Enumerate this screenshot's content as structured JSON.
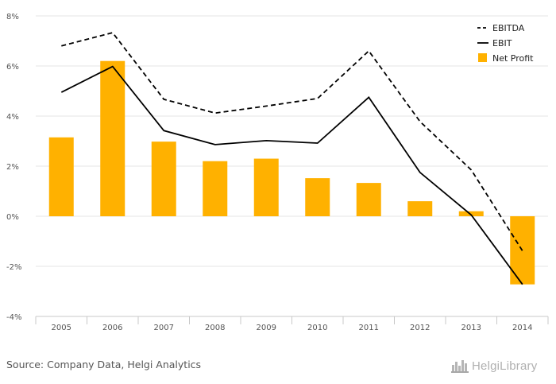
{
  "chart_data": {
    "type": "bar",
    "categories": [
      "2005",
      "2006",
      "2007",
      "2008",
      "2009",
      "2010",
      "2011",
      "2012",
      "2013",
      "2014"
    ],
    "series": [
      {
        "name": "Net Profit",
        "type": "bar",
        "color": "#FFB100",
        "values": [
          3.15,
          6.2,
          2.98,
          2.2,
          2.3,
          1.52,
          1.33,
          0.6,
          0.2,
          -2.72
        ]
      },
      {
        "name": "EBITDA",
        "type": "line",
        "style": "dashed",
        "color": "#000000",
        "values": [
          6.8,
          7.33,
          4.67,
          4.12,
          4.4,
          4.7,
          6.6,
          3.78,
          1.85,
          -1.38
        ]
      },
      {
        "name": "EBIT",
        "type": "line",
        "style": "solid",
        "color": "#000000",
        "values": [
          4.95,
          5.98,
          3.42,
          2.86,
          3.02,
          2.92,
          4.75,
          1.75,
          0.05,
          -2.72
        ]
      }
    ],
    "y_ticks": [
      "8%",
      "6%",
      "4%",
      "2%",
      "0%",
      "-2%",
      "-4%"
    ],
    "ylim": [
      -4,
      8
    ],
    "grid": true,
    "legend_position": "top-right",
    "legend": [
      "EBITDA",
      "EBIT",
      "Net Profit"
    ]
  },
  "footer": {
    "source": "Source: Company Data, Helgi Analytics",
    "logo": "HelgiLibrary",
    "logo_icon": "city-skyline-icon"
  }
}
